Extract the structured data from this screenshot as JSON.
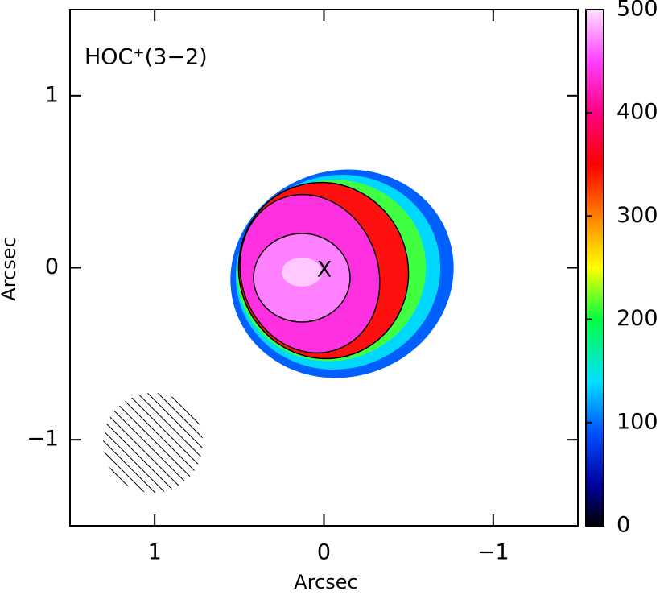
{
  "chart_data": {
    "type": "image-map",
    "title": "HOC⁺(3−2)",
    "x_label": "Arcsec",
    "y_label": "Arcsec",
    "xlim": [
      1.5,
      -1.5
    ],
    "ylim": [
      -1.5,
      1.5
    ],
    "xticks": [
      1,
      0,
      {
        "value": -1,
        "label": "−1"
      }
    ],
    "yticks": [
      {
        "value": -1,
        "label": "−1"
      },
      0,
      1
    ],
    "colorbar_lim": [
      0,
      500
    ],
    "colorbar_ticks": [
      0,
      100,
      200,
      300,
      400,
      500
    ],
    "marker": "X"
  }
}
